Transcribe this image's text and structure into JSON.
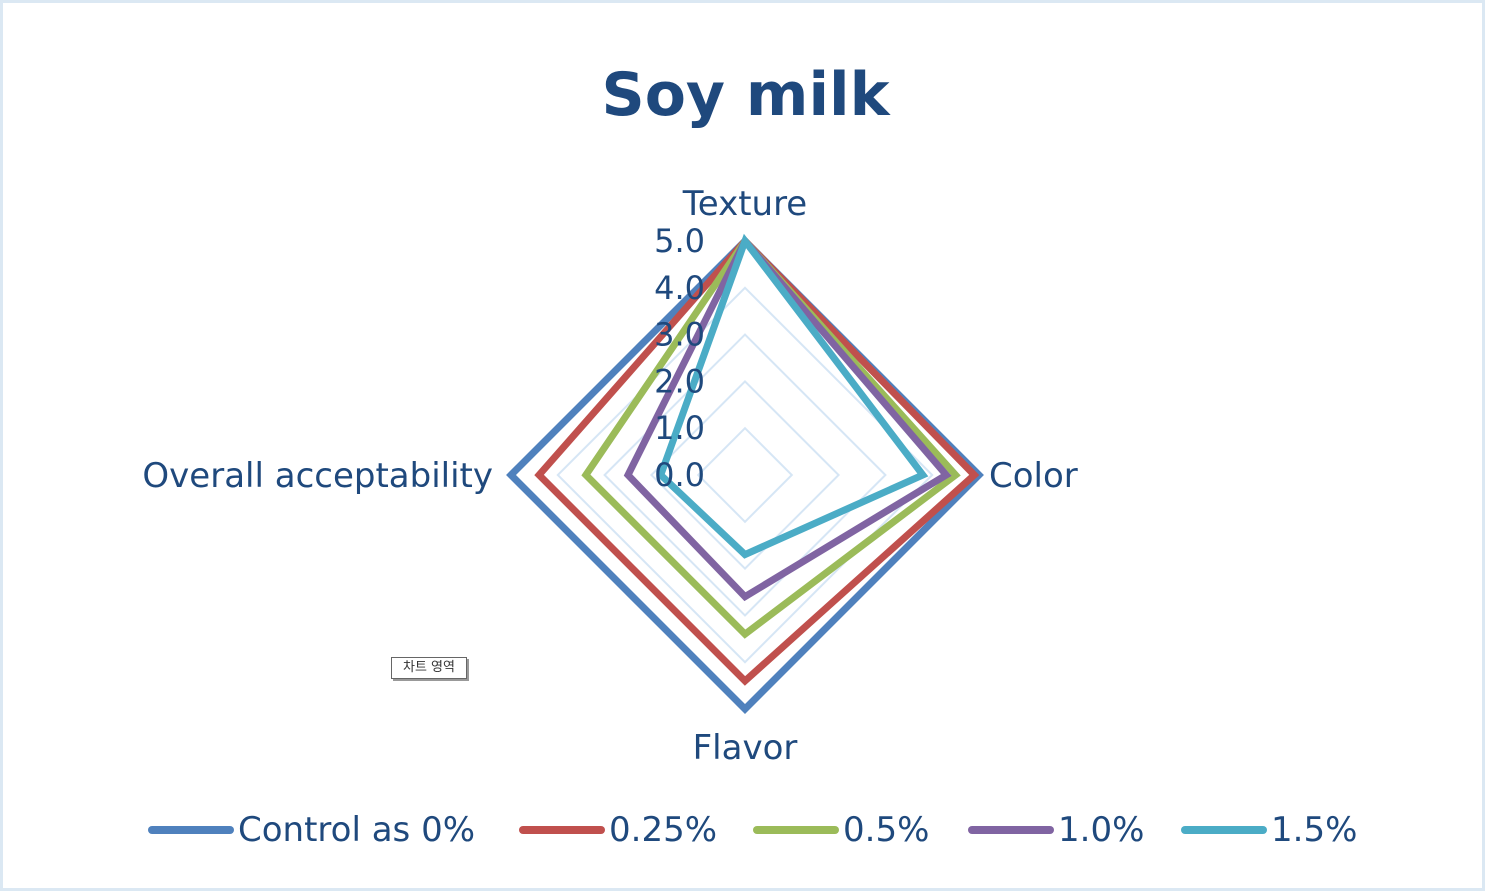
{
  "chart_data": {
    "type": "radar",
    "title": "Soy milk",
    "axes": [
      "Texture",
      "Color",
      "Flavor",
      "Overall acceptability"
    ],
    "rlim": [
      0,
      5
    ],
    "ticks": [
      "0.0",
      "1.0",
      "2.0",
      "3.0",
      "4.0",
      "5.0"
    ],
    "tick_values": [
      0,
      1,
      2,
      3,
      4,
      5
    ],
    "grid": true,
    "legend_position": "bottom",
    "series": [
      {
        "name": "Control as 0%",
        "values": [
          5.0,
          5.0,
          5.0,
          5.0
        ],
        "color": "#4f81bd"
      },
      {
        "name": "0.25%",
        "values": [
          5.0,
          4.9,
          4.4,
          4.4
        ],
        "color": "#c0504d"
      },
      {
        "name": "0.5%",
        "values": [
          5.0,
          4.5,
          3.4,
          3.4
        ],
        "color": "#9bbb59"
      },
      {
        "name": "1.0%",
        "values": [
          5.0,
          4.3,
          2.6,
          2.5
        ],
        "color": "#8064a2"
      },
      {
        "name": "1.5%",
        "values": [
          5.0,
          3.8,
          1.7,
          1.8
        ],
        "color": "#4bacc6"
      }
    ]
  },
  "tooltip": "차트 영역",
  "grid_color": "#d6e6f5"
}
